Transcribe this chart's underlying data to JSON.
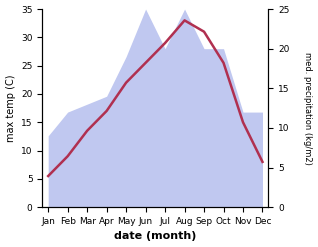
{
  "months": [
    "Jan",
    "Feb",
    "Mar",
    "Apr",
    "May",
    "Jun",
    "Jul",
    "Aug",
    "Sep",
    "Oct",
    "Nov",
    "Dec"
  ],
  "temp": [
    5.5,
    9.0,
    13.5,
    17.0,
    22.0,
    25.5,
    29.0,
    33.0,
    31.0,
    25.5,
    15.0,
    8.0
  ],
  "precip": [
    9,
    12,
    13,
    14,
    19,
    25,
    20,
    25,
    20,
    20,
    12,
    12
  ],
  "temp_color": "#b03050",
  "precip_color_fill": "#c0c8f0",
  "title": "",
  "ylabel_left": "max temp (C)",
  "ylabel_right": "med. precipitation (kg/m2)",
  "xlabel": "date (month)",
  "ylim_left": [
    0,
    35
  ],
  "ylim_right": [
    0,
    25
  ],
  "yticks_left": [
    0,
    5,
    10,
    15,
    20,
    25,
    30,
    35
  ],
  "yticks_right": [
    0,
    5,
    10,
    15,
    20,
    25
  ]
}
